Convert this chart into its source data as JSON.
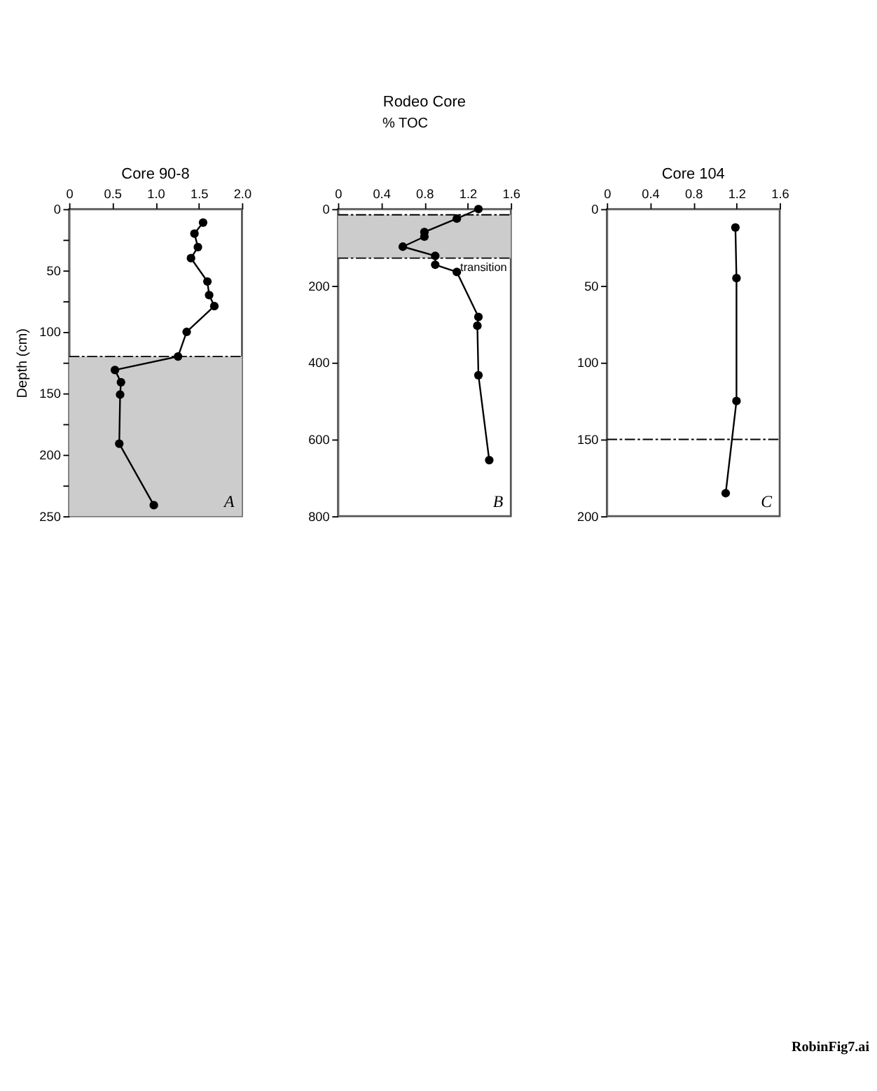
{
  "chart_data": [
    {
      "type": "line",
      "title": "Core 90-8",
      "ylabel": "Depth (cm)",
      "marker": "circle",
      "line_style": "solid",
      "grid": false,
      "xlim": [
        0,
        2.0
      ],
      "xticks": [
        0,
        0.5,
        {
          "value": 1,
          "label": "1.0"
        },
        1.5,
        {
          "value": 2,
          "label": "2.0"
        }
      ],
      "ylim": [
        250,
        0
      ],
      "yticks": [
        0,
        {
          "value": 25,
          "label": null
        },
        50,
        {
          "value": 75,
          "label": null
        },
        100,
        {
          "value": 125,
          "label": null
        },
        150,
        {
          "value": 175,
          "label": null
        },
        200,
        {
          "value": 225,
          "label": null
        },
        250
      ],
      "series": [
        {
          "color": "#000000",
          "x": [
            1.55,
            1.45,
            1.49,
            1.41,
            1.6,
            1.62,
            1.68,
            1.36,
            1.26,
            0.53,
            0.6,
            0.59,
            0.58,
            0.98
          ],
          "values": [
            11,
            20,
            31,
            40,
            59,
            70,
            79,
            100,
            120,
            131,
            141,
            151,
            191,
            241
          ]
        }
      ],
      "ref_lines": [
        {
          "axis": "y",
          "value": 120,
          "line_style": "dashed",
          "color": "#000000"
        }
      ],
      "bands": [
        {
          "axis": "y",
          "from": 120,
          "to": 250,
          "color": "#cccccc"
        }
      ],
      "annotations": [
        "A"
      ]
    },
    {
      "type": "line",
      "title": "Rodeo Core",
      "xlabel": "% TOC",
      "marker": "circle",
      "line_style": "solid",
      "grid": false,
      "xlim": [
        0,
        1.6
      ],
      "xticks": [
        0,
        0.4,
        0.8,
        1.2,
        1.6
      ],
      "ylim": [
        800,
        0
      ],
      "yticks": [
        0,
        200,
        400,
        600,
        800
      ],
      "series": [
        {
          "color": "#000000",
          "x": [
            1.3,
            1.1,
            0.8,
            0.8,
            0.6,
            0.9,
            0.9,
            1.1,
            1.3,
            1.29,
            1.3,
            1.4
          ],
          "values": [
            0,
            25,
            60,
            72,
            98,
            122,
            145,
            164,
            281,
            304,
            433,
            654
          ]
        }
      ],
      "ref_lines": [
        {
          "axis": "y",
          "value": 15,
          "line_style": "dashed",
          "color": "#000000"
        },
        {
          "axis": "y",
          "value": 128,
          "line_style": "dashed",
          "color": "#000000"
        }
      ],
      "bands": [
        {
          "axis": "y",
          "from": 15,
          "to": 128,
          "label": "transition",
          "color": "#cccccc"
        }
      ],
      "annotations": [
        "B"
      ]
    },
    {
      "type": "line",
      "title": "Core 104",
      "marker": "circle",
      "line_style": "solid",
      "grid": false,
      "xlim": [
        0,
        1.6
      ],
      "xticks": [
        0,
        0.4,
        0.8,
        1.2,
        1.6
      ],
      "ylim": [
        200,
        0
      ],
      "yticks": [
        0,
        50,
        100,
        150,
        200
      ],
      "series": [
        {
          "color": "#000000",
          "x": [
            1.19,
            1.2,
            1.2,
            1.1
          ],
          "values": [
            12,
            45,
            125,
            185
          ]
        }
      ],
      "ref_lines": [
        {
          "axis": "y",
          "value": 150,
          "line_style": "dashed",
          "color": "#000000"
        }
      ],
      "annotations": [
        "C",
        "RobinFig7.ai"
      ]
    }
  ]
}
